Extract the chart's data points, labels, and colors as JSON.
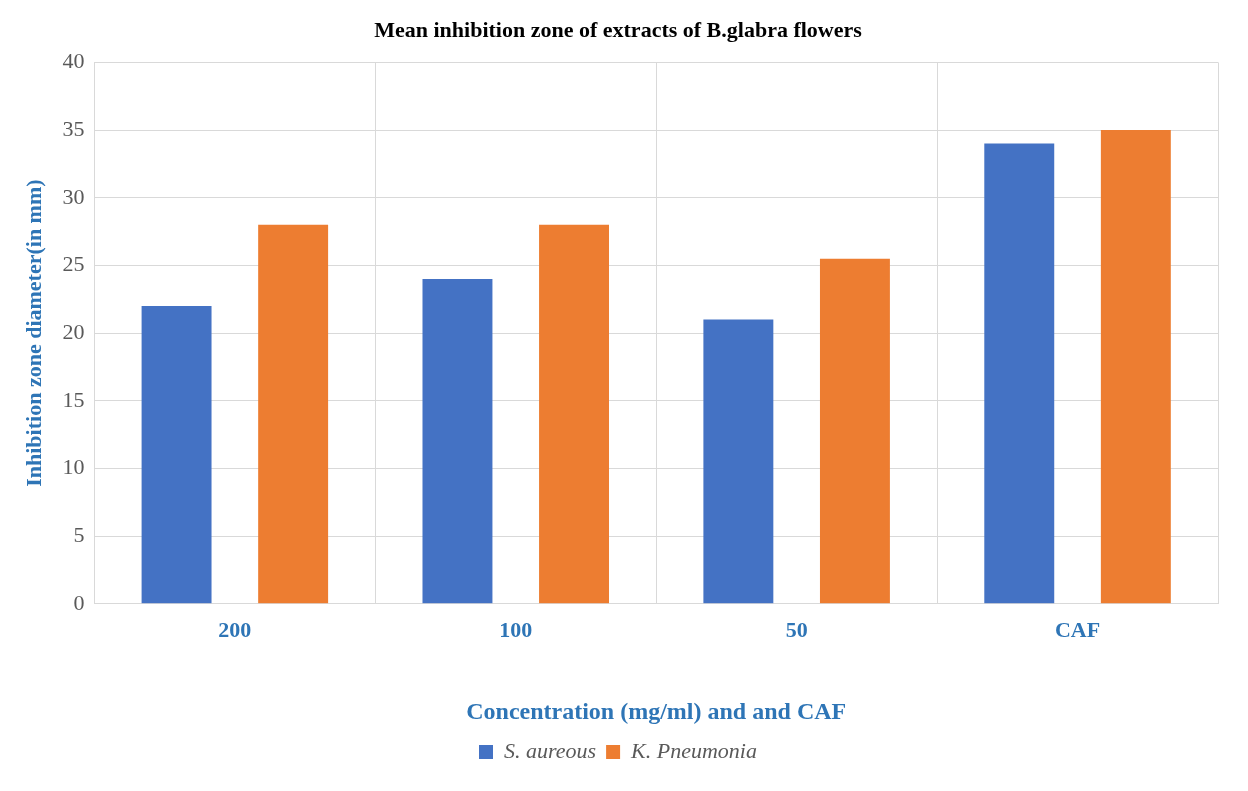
{
  "chart_data": {
    "type": "bar",
    "title": "Mean inhibition zone of extracts of B.glabra flowers",
    "xlabel": "Concentration (mg/ml) and and CAF",
    "ylabel": "Inhibition zone diameter(in mm)",
    "categories": [
      "200",
      "100",
      "50",
      "CAF"
    ],
    "series": [
      {
        "name": "S. aureous",
        "color": "#4472c4",
        "values": [
          22,
          24,
          21,
          34
        ]
      },
      {
        "name": "K. Pneumonia",
        "color": "#ed7d31",
        "values": [
          28,
          28,
          25.5,
          35
        ]
      }
    ],
    "ylim": [
      0,
      40
    ],
    "yticks": [
      0,
      5,
      10,
      15,
      20,
      25,
      30,
      35,
      40
    ],
    "grid": true,
    "legend": "bottom"
  }
}
